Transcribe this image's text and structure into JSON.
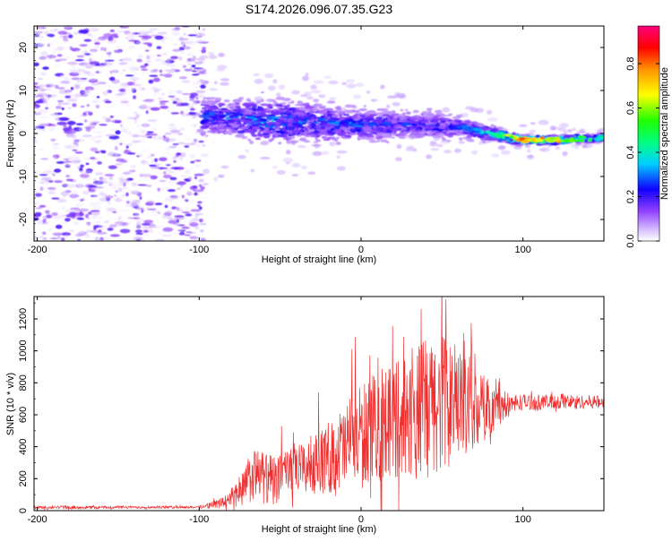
{
  "title": "S174.2026.096.07.35.G23",
  "chart_data": [
    {
      "type": "heatmap",
      "xlabel": "Height of straight line (km)",
      "ylabel": "Frequency (Hz)",
      "xlim": [
        -202,
        150
      ],
      "ylim": [
        -25,
        25
      ],
      "xticks": [
        -200,
        -100,
        0,
        100
      ],
      "yticks": [
        -20,
        -10,
        0,
        10,
        20
      ],
      "colorbar": {
        "label": "Normalized spectral amplitude",
        "range": [
          0,
          0.97
        ],
        "ticks": [
          0.0,
          0.2,
          0.4,
          0.6,
          0.8
        ],
        "colormap": [
          "#ffffff",
          "#b080ff",
          "#8000ff",
          "#0000ff",
          "#00ffff",
          "#00ff00",
          "#ffff00",
          "#ff8000",
          "#ff0000",
          "#ff0080"
        ]
      },
      "ridge": {
        "description": "strong narrow-band signal",
        "x": [
          -95,
          -60,
          -30,
          0,
          30,
          60,
          80,
          100,
          120,
          150
        ],
        "freq": [
          4,
          3,
          2.5,
          2,
          2,
          1.5,
          0,
          -1.5,
          -1.5,
          -1
        ],
        "peak_amplitude": [
          0.35,
          0.4,
          0.35,
          0.35,
          0.3,
          0.3,
          0.45,
          0.9,
          0.85,
          0.45
        ]
      },
      "noise_region_x": [
        -202,
        -100
      ]
    },
    {
      "type": "line",
      "xlabel": "Height of straight line (km)",
      "ylabel": "SNR (10 * v/v)",
      "xlim": [
        -202,
        150
      ],
      "ylim": [
        0,
        1340
      ],
      "xticks": [
        -200,
        -100,
        0,
        100
      ],
      "yticks": [
        0,
        200,
        400,
        600,
        800,
        1000,
        1200
      ],
      "color": "#f03030",
      "envelope_x": [
        -202,
        -100,
        -85,
        -75,
        -65,
        -55,
        -40,
        -20,
        0,
        20,
        40,
        50,
        60,
        75,
        90,
        100,
        150
      ],
      "envelope_mean": [
        20,
        22,
        50,
        120,
        230,
        180,
        250,
        330,
        470,
        580,
        640,
        680,
        650,
        640,
        660,
        680,
        680
      ],
      "envelope_spread": [
        10,
        8,
        35,
        90,
        170,
        160,
        150,
        220,
        320,
        380,
        430,
        440,
        330,
        220,
        80,
        50,
        40
      ]
    }
  ]
}
